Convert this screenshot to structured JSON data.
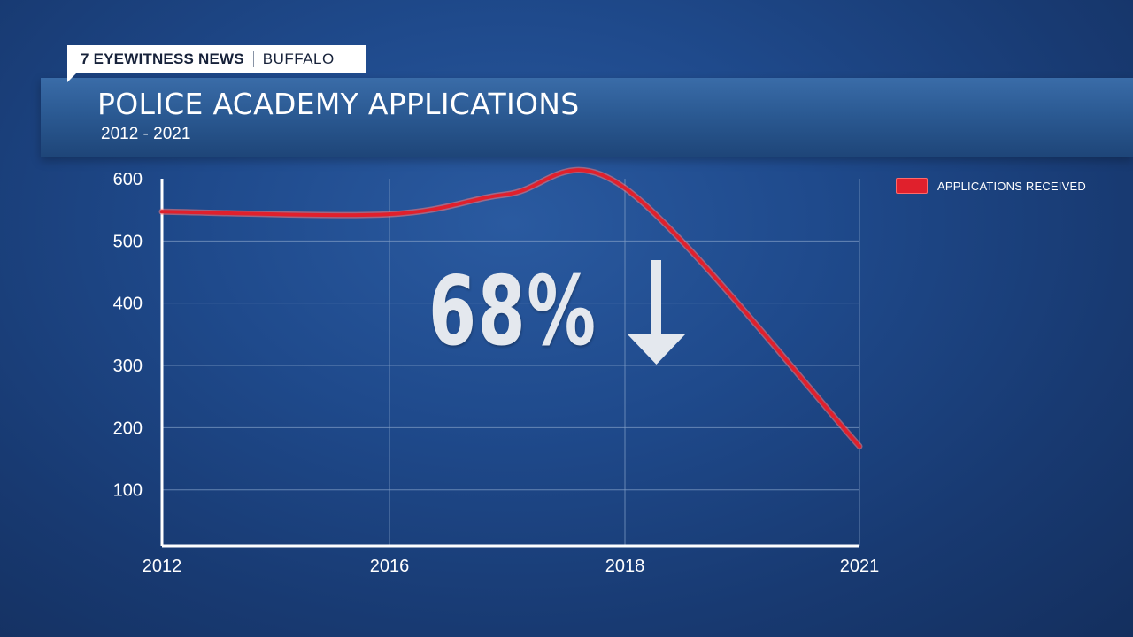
{
  "station": {
    "name": "7 EYEWITNESS NEWS",
    "city": "BUFFALO"
  },
  "header": {
    "title": "POLICE ACADEMY APPLICATIONS",
    "subtitle": "2012 - 2021"
  },
  "annotation": {
    "text": "68%",
    "arrow_icon": "down-arrow-icon"
  },
  "colors": {
    "line": "#e0202c",
    "text": "#ffffff",
    "background": "#1f4a8c",
    "grid": "#7f9cc4"
  },
  "chart_data": {
    "type": "line",
    "title": "POLICE ACADEMY APPLICATIONS",
    "subtitle": "2012 - 2021",
    "x_tick_labels": [
      "2012",
      "2016",
      "2018",
      "2021"
    ],
    "y_ticks": [
      100,
      200,
      300,
      400,
      500,
      600
    ],
    "ylim": [
      10,
      600
    ],
    "grid": true,
    "legend_position": "top-right",
    "series": [
      {
        "name": "APPLICATIONS RECEIVED",
        "points": [
          {
            "x": "2012",
            "y": 547
          },
          {
            "x": "2016",
            "y": 543
          },
          {
            "x": "2017",
            "y": 575
          },
          {
            "x": "2018",
            "y": 585
          },
          {
            "x": "2021",
            "y": 170
          }
        ]
      }
    ]
  }
}
